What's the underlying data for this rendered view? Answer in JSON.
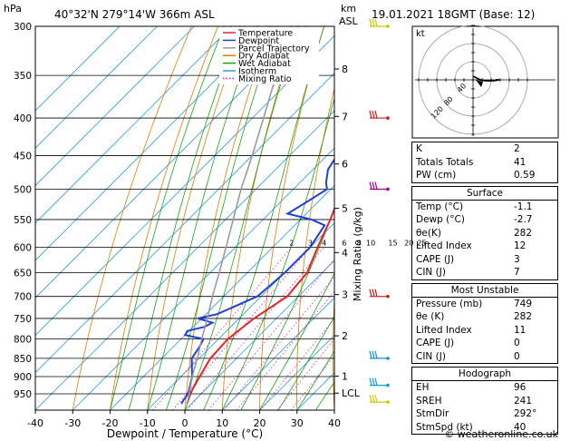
{
  "header": {
    "hpa_label": "hPa",
    "location": "40°32'N  279°14'W  366m  ASL",
    "km_label": "km",
    "asl_label": "ASL",
    "datetime": "19.01.2021  18GMT  (Base: 12)"
  },
  "legend": [
    {
      "label": "Temperature",
      "color": "#e8222b"
    },
    {
      "label": "Dewpoint",
      "color": "#1d3fd6"
    },
    {
      "label": "Parcel Trajectory",
      "color": "#9a9a9a"
    },
    {
      "label": "Dry Adiabat",
      "color": "#e07a00"
    },
    {
      "label": "Wet Adiabat",
      "color": "#16a416"
    },
    {
      "label": "Isotherm",
      "color": "#2aa0e0"
    },
    {
      "label": "Mixing Ratio",
      "color": "#d020b0"
    }
  ],
  "chart_data": {
    "type": "line",
    "title": "",
    "xlabel": "Dewpoint / Temperature (°C)",
    "ylabel": "hPa",
    "right_axis_label": "Mixing Ratio (g/kg)",
    "x_ticks": [
      "-40",
      "-30",
      "-20",
      "-10",
      "0",
      "10",
      "20",
      "30",
      "40"
    ],
    "xlim": [
      -40,
      40
    ],
    "pressure_levels": [
      "300",
      "350",
      "400",
      "450",
      "500",
      "550",
      "600",
      "650",
      "700",
      "750",
      "800",
      "850",
      "900",
      "950"
    ],
    "ylim_hpa": [
      300,
      1000
    ],
    "km_ticks": [
      {
        "p": 343,
        "label": "8"
      },
      {
        "p": 398,
        "label": "7"
      },
      {
        "p": 462,
        "label": "6"
      },
      {
        "p": 531,
        "label": "5"
      },
      {
        "p": 610,
        "label": "4"
      },
      {
        "p": 696,
        "label": "3"
      },
      {
        "p": 792,
        "label": "2"
      },
      {
        "p": 899,
        "label": "1"
      },
      {
        "p": 948,
        "label": "LCL"
      }
    ],
    "mixing_ratio_labels": [
      "2",
      "3",
      "4",
      "6",
      "8",
      "10",
      "15",
      "20",
      "25"
    ],
    "series": [
      {
        "name": "Temperature",
        "color": "#e8222b",
        "points": [
          [
            980,
            -1.1
          ],
          [
            950,
            -3
          ],
          [
            900,
            -5
          ],
          [
            850,
            -7
          ],
          [
            800,
            -7.5
          ],
          [
            750,
            -6
          ],
          [
            700,
            -3
          ],
          [
            650,
            -4
          ],
          [
            600,
            -8
          ],
          [
            550,
            -12
          ],
          [
            500,
            -17
          ],
          [
            450,
            -22
          ],
          [
            400,
            -20
          ],
          [
            350,
            -26
          ],
          [
            300,
            -33
          ]
        ]
      },
      {
        "name": "Dewpoint",
        "color": "#1d3fd6",
        "points": [
          [
            980,
            -2.7
          ],
          [
            970,
            -3
          ],
          [
            950,
            -3.5
          ],
          [
            900,
            -7
          ],
          [
            870,
            -10
          ],
          [
            850,
            -12
          ],
          [
            820,
            -13
          ],
          [
            800,
            -14
          ],
          [
            790,
            -20
          ],
          [
            780,
            -20.5
          ],
          [
            770,
            -17
          ],
          [
            760,
            -16
          ],
          [
            750,
            -21
          ],
          [
            740,
            -17
          ],
          [
            700,
            -11
          ],
          [
            650,
            -10
          ],
          [
            600,
            -10
          ],
          [
            560,
            -12
          ],
          [
            550,
            -17
          ],
          [
            540,
            -25
          ],
          [
            520,
            -23
          ],
          [
            500,
            -21
          ],
          [
            490,
            -23
          ],
          [
            470,
            -26
          ],
          [
            440,
            -28
          ],
          [
            400,
            -36
          ],
          [
            380,
            -40
          ]
        ]
      },
      {
        "name": "Parcel Trajectory",
        "color": "#9a9a9a",
        "points": [
          [
            980,
            -1.1
          ],
          [
            950,
            -3.2
          ],
          [
            900,
            -7
          ],
          [
            850,
            -10.5
          ],
          [
            800,
            -14.5
          ],
          [
            750,
            -18.5
          ],
          [
            700,
            -23
          ],
          [
            650,
            -27.5
          ],
          [
            600,
            -32.5
          ],
          [
            550,
            -38
          ],
          [
            500,
            -44
          ],
          [
            450,
            -50
          ],
          [
            400,
            -57
          ],
          [
            350,
            -65
          ],
          [
            300,
            -74
          ]
        ]
      }
    ]
  },
  "hodograph": {
    "label": "kt",
    "ring_labels": [
      "40",
      "80",
      "120"
    ]
  },
  "indices": {
    "k_label": "K",
    "k_value": "2",
    "tt_label": "Totals Totals",
    "tt_value": "41",
    "pw_label": "PW (cm)",
    "pw_value": "0.59"
  },
  "surface": {
    "title": "Surface",
    "rows": [
      {
        "label": "Temp (°C)",
        "value": "-1.1"
      },
      {
        "label": "Dewp (°C)",
        "value": "-2.7"
      },
      {
        "label": "θe(K)",
        "value": "282"
      },
      {
        "label": "Lifted Index",
        "value": "12"
      },
      {
        "label": "CAPE (J)",
        "value": "3"
      },
      {
        "label": "CIN (J)",
        "value": "7"
      }
    ]
  },
  "most_unstable": {
    "title": "Most Unstable",
    "rows": [
      {
        "label": "Pressure (mb)",
        "value": "749"
      },
      {
        "label": "θe (K)",
        "value": "282"
      },
      {
        "label": "Lifted Index",
        "value": "11"
      },
      {
        "label": "CAPE (J)",
        "value": "0"
      },
      {
        "label": "CIN (J)",
        "value": "0"
      }
    ]
  },
  "hodograph_table": {
    "title": "Hodograph",
    "rows": [
      {
        "label": "EH",
        "value": "96"
      },
      {
        "label": "SREH",
        "value": "241"
      },
      {
        "label": "StmDir",
        "value": "292°"
      },
      {
        "label": "StmSpd (kt)",
        "value": "40"
      }
    ]
  },
  "footer": {
    "copyright": "© weatheronline.co.uk"
  }
}
